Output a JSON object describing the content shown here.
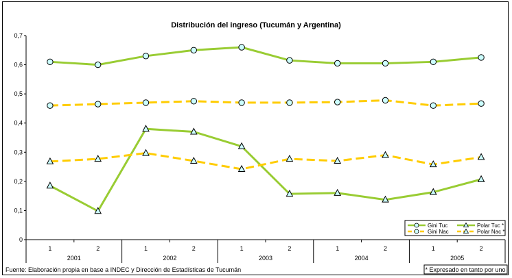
{
  "chart_data": {
    "type": "line",
    "title": "Distribución del ingreso (Tucumán y Argentina)",
    "xlabel": "",
    "ylabel": "",
    "ylim": [
      0,
      0.7
    ],
    "yticks": [
      "0",
      "0,1",
      "0,2",
      "0,3",
      "0,4",
      "0,5",
      "0,6",
      "0,7"
    ],
    "semesters": [
      "1",
      "2",
      "1",
      "2",
      "1",
      "2",
      "1",
      "2",
      "1",
      "2"
    ],
    "years": [
      "2001",
      "2002",
      "2003",
      "2004",
      "2005"
    ],
    "grid": false,
    "legend_position": "bottom-right",
    "series": [
      {
        "name": "Gini Tuc",
        "marker": "circle",
        "dashed": false,
        "color": "#99cc33",
        "values": [
          0.61,
          0.6,
          0.63,
          0.65,
          0.66,
          0.615,
          0.605,
          0.605,
          0.61,
          0.625
        ]
      },
      {
        "name": "Gini Nac",
        "marker": "circle",
        "dashed": true,
        "color": "#ffcc00",
        "values": [
          0.46,
          0.465,
          0.47,
          0.475,
          0.47,
          0.47,
          0.472,
          0.478,
          0.46,
          0.467
        ]
      },
      {
        "name": "Polar Tuc *",
        "marker": "triangle",
        "dashed": false,
        "color": "#99cc33",
        "values": [
          0.185,
          0.098,
          0.38,
          0.37,
          0.32,
          0.157,
          0.16,
          0.137,
          0.163,
          0.207
        ]
      },
      {
        "name": "Polar Nac *",
        "marker": "triangle",
        "dashed": true,
        "color": "#ffcc00",
        "values": [
          0.268,
          0.277,
          0.297,
          0.27,
          0.242,
          0.277,
          0.27,
          0.29,
          0.258,
          0.283
        ]
      }
    ],
    "source_note": "Fuente: Elaboración propia en base a INDEC y Dirección de Estadísticas de Tucumán",
    "unit_note": "* Expresado en tanto por uno"
  },
  "colors": {
    "marker_fill": "#ccffff",
    "axis": "#000000"
  }
}
